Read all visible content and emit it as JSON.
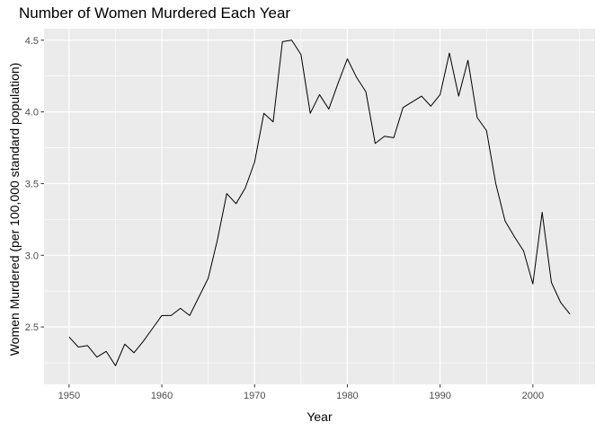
{
  "chart_data": {
    "type": "line",
    "title": "Number of Women Murdered Each Year",
    "xlabel": "Year",
    "ylabel": "Women Murdered (per 100,000 standard population)",
    "xlim": [
      1947.3,
      2006.7
    ],
    "ylim": [
      2.1,
      4.58
    ],
    "x_ticks": [
      1950,
      1960,
      1970,
      1980,
      1990,
      2000
    ],
    "y_ticks": [
      2.5,
      3.0,
      3.5,
      4.0,
      4.5
    ],
    "y_tick_labels": [
      "2.5",
      "3.0",
      "3.5",
      "4.0",
      "4.5"
    ],
    "grid": true,
    "legend": "none",
    "colors": {
      "panel": "#ebebeb",
      "grid": "#ffffff",
      "line": "#000000",
      "tick_text": "#4d4d4d",
      "tick_mark": "#333333"
    },
    "series": [
      {
        "x": [
          1950,
          1951,
          1952,
          1953,
          1954,
          1955,
          1956,
          1957,
          1958,
          1959,
          1960,
          1961,
          1962,
          1963,
          1964,
          1965,
          1966,
          1967,
          1968,
          1969,
          1970,
          1971,
          1972,
          1973,
          1974,
          1975,
          1976,
          1977,
          1978,
          1979,
          1980,
          1981,
          1982,
          1983,
          1984,
          1985,
          1986,
          1987,
          1988,
          1989,
          1990,
          1991,
          1992,
          1993,
          1994,
          1995,
          1996,
          1997,
          1998,
          1999,
          2000,
          2001,
          2002,
          2003,
          2004
        ],
        "values": [
          2.43,
          2.36,
          2.37,
          2.29,
          2.33,
          2.23,
          2.38,
          2.32,
          2.4,
          2.49,
          2.58,
          2.58,
          2.63,
          2.58,
          2.71,
          2.84,
          3.11,
          3.43,
          3.36,
          3.47,
          3.65,
          3.99,
          3.93,
          4.49,
          4.5,
          4.4,
          3.99,
          4.12,
          4.02,
          4.2,
          4.37,
          4.24,
          4.14,
          3.78,
          3.83,
          3.82,
          4.03,
          4.07,
          4.11,
          4.04,
          4.12,
          4.41,
          4.11,
          4.36,
          3.96,
          3.87,
          3.5,
          3.24,
          3.13,
          3.03,
          2.8,
          3.3,
          2.81,
          2.67,
          2.59
        ]
      }
    ]
  }
}
